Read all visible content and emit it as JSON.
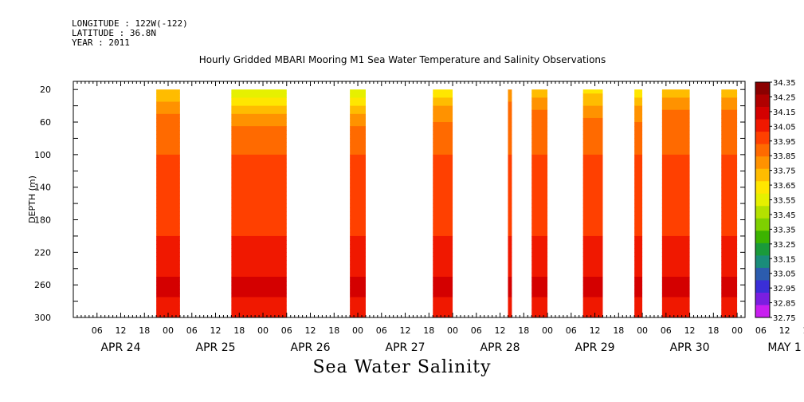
{
  "header": {
    "longitude": "LONGITUDE : 122W(-122)",
    "latitude": "LATITUDE : 36.8N",
    "year": "YEAR : 2011"
  },
  "plot_title": "Hourly Gridded MBARI Mooring M1 Sea Water Temperature and Salinity Observations",
  "variable_title": "Sea Water Salinity",
  "chart_data": {
    "type": "heatmap",
    "title": "Hourly Gridded MBARI Mooring M1 Sea Water Temperature and Salinity Observations",
    "ylabel": "DEPTH (m)",
    "xlabel": "",
    "ylim": [
      300,
      0
    ],
    "y_ticks": [
      20,
      60,
      100,
      140,
      180,
      220,
      260,
      300
    ],
    "x_hour_ticks": [
      "06",
      "12",
      "18",
      "00",
      "06",
      "12",
      "18",
      "00",
      "06",
      "12",
      "18",
      "00",
      "06",
      "12",
      "18",
      "00",
      "06",
      "12",
      "18",
      "00",
      "06",
      "12",
      "18",
      "00",
      "06",
      "12",
      "18",
      "00",
      "06",
      "12",
      "18",
      "00"
    ],
    "x_day_labels": [
      "APR 24",
      "APR 25",
      "APR 26",
      "APR 27",
      "APR 28",
      "APR 29",
      "APR 30",
      "MAY  1"
    ],
    "x_range_hours": [
      0,
      170
    ],
    "colorbar": {
      "levels": [
        "34.35",
        "34.25",
        "34.15",
        "34.05",
        "33.95",
        "33.85",
        "33.75",
        "33.65",
        "33.55",
        "33.45",
        "33.35",
        "33.25",
        "33.15",
        "33.05",
        "32.95",
        "32.85",
        "32.75"
      ],
      "colors": [
        "#8b0000",
        "#b00000",
        "#d40000",
        "#f01800",
        "#ff4000",
        "#ff6a00",
        "#ff9200",
        "#ffbc00",
        "#ffe600",
        "#e6f000",
        "#b4e100",
        "#7ed000",
        "#3cb300",
        "#1a9a3a",
        "#1a8c7a",
        "#2c5cae",
        "#3a2ed8",
        "#7a1ee0",
        "#c81ef0"
      ]
    },
    "data_segments": [
      {
        "start_hour": 21,
        "end_hour": 27,
        "surface_value": 33.75
      },
      {
        "start_hour": 40,
        "end_hour": 54,
        "surface_value": 33.55
      },
      {
        "start_hour": 70,
        "end_hour": 74,
        "surface_value": 33.55
      },
      {
        "start_hour": 91,
        "end_hour": 96,
        "surface_value": 33.65
      },
      {
        "start_hour": 110,
        "end_hour": 111,
        "surface_value": 33.85
      },
      {
        "start_hour": 116,
        "end_hour": 120,
        "surface_value": 33.8
      },
      {
        "start_hour": 129,
        "end_hour": 134,
        "surface_value": 33.7
      },
      {
        "start_hour": 142,
        "end_hour": 144,
        "surface_value": 33.65
      },
      {
        "start_hour": 149,
        "end_hour": 156,
        "surface_value": 33.8
      },
      {
        "start_hour": 164,
        "end_hour": 168,
        "surface_value": 33.8
      }
    ],
    "profile": [
      {
        "depth": 20,
        "value": 33.75
      },
      {
        "depth": 40,
        "value": 33.9
      },
      {
        "depth": 60,
        "value": 34.0
      },
      {
        "depth": 100,
        "value": 34.05
      },
      {
        "depth": 140,
        "value": 34.12
      },
      {
        "depth": 200,
        "value": 34.15
      },
      {
        "depth": 240,
        "value": 34.22
      },
      {
        "depth": 260,
        "value": 34.28
      },
      {
        "depth": 300,
        "value": 34.2
      }
    ]
  }
}
